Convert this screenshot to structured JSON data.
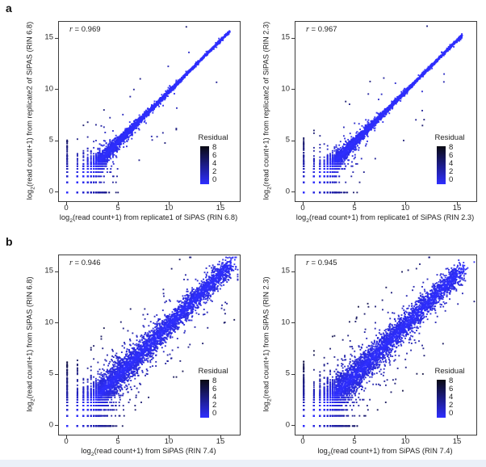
{
  "figure": {
    "panel_a_label": "a",
    "panel_b_label": "b"
  },
  "legend_colormap": {
    "low_color": "#2e2eff",
    "high_color": "#0a0a12",
    "min": 0,
    "max": 8
  },
  "chart_data": [
    {
      "type": "scatter",
      "panel_label": "a",
      "r_symbol": "r",
      "r_rest": " = 0.969",
      "x_label": {
        "prefix": "log",
        "sub": "2",
        "rest": "(read count+1) from replicate1 of SiPAS (RIN 6.8)"
      },
      "y_label": {
        "prefix": "log",
        "sub": "2",
        "rest": "(read count+1) from replicate2 of SiPAS (RIN 6.8)"
      },
      "x_ticks": [
        "0",
        "5",
        "10",
        "15"
      ],
      "y_ticks": [
        "0",
        "5",
        "10",
        "15"
      ],
      "x_tick_values": [
        0,
        5,
        10,
        15
      ],
      "y_tick_values": [
        0,
        5,
        10,
        15
      ],
      "xlim": [
        -0.8,
        16.8
      ],
      "ylim": [
        -0.85,
        16.75
      ],
      "legend": {
        "title": "Residual",
        "tick_labels": [
          "8",
          "6",
          "4",
          "2",
          "0"
        ],
        "low_color": "#2e2eff",
        "high_color": "#0a0a12"
      },
      "distribution": {
        "seed": 7,
        "n": 5200,
        "v_power": 2.1,
        "v_max": 15.8,
        "noise_floor": 0.05,
        "noise_base": 1.6,
        "noise_decay": 2.8,
        "heavy_frac": 0.12,
        "heavy_mult": 2.4,
        "outliers": 28,
        "outlier_min": 1.5,
        "outlier_max": 5.0,
        "zero_col_n": 60,
        "zero_col_max": 5.2,
        "zero_row_n": 95,
        "zero_row_max": 4.1,
        "snap_below": 5.0
      }
    },
    {
      "type": "scatter",
      "panel_label": "",
      "r_symbol": "r",
      "r_rest": " = 0.967",
      "x_label": {
        "prefix": "log",
        "sub": "2",
        "rest": "(read count+1) from replicate1 of SiPAS (RIN 2.3)"
      },
      "y_label": {
        "prefix": "log",
        "sub": "2",
        "rest": "(read count+1) from replicate2 of SiPAS (RIN 2.3)"
      },
      "x_ticks": [
        "0",
        "5",
        "10",
        "15"
      ],
      "y_ticks": [
        "0",
        "5",
        "10",
        "15"
      ],
      "x_tick_values": [
        0,
        5,
        10,
        15
      ],
      "y_tick_values": [
        0,
        5,
        10,
        15
      ],
      "xlim": [
        -0.8,
        16.8
      ],
      "ylim": [
        -0.85,
        16.75
      ],
      "legend": {
        "title": "Residual",
        "tick_labels": [
          "8",
          "6",
          "4",
          "2",
          "0"
        ],
        "low_color": "#2e2eff",
        "high_color": "#0a0a12"
      },
      "distribution": {
        "seed": 13,
        "n": 5200,
        "v_power": 2.1,
        "v_max": 15.4,
        "noise_floor": 0.05,
        "noise_base": 1.6,
        "noise_decay": 2.8,
        "heavy_frac": 0.12,
        "heavy_mult": 2.4,
        "outliers": 26,
        "outlier_min": 1.5,
        "outlier_max": 5.0,
        "zero_col_n": 60,
        "zero_col_max": 5.1,
        "zero_row_n": 90,
        "zero_row_max": 3.6,
        "snap_below": 5.0
      }
    },
    {
      "type": "scatter",
      "panel_label": "b",
      "r_symbol": "r",
      "r_rest": " = 0.946",
      "x_label": {
        "prefix": "log",
        "sub": "2",
        "rest": "(read count+1) from SiPAS (RIN 7.4)"
      },
      "y_label": {
        "prefix": "log",
        "sub": "2",
        "rest": "(read count+1) from SiPAS (RIN 6.8)"
      },
      "x_ticks": [
        "0",
        "5",
        "10",
        "15"
      ],
      "y_ticks": [
        "0",
        "5",
        "10",
        "15"
      ],
      "x_tick_values": [
        0,
        5,
        10,
        15
      ],
      "y_tick_values": [
        0,
        5,
        10,
        15
      ],
      "xlim": [
        -0.8,
        16.8
      ],
      "ylim": [
        -0.85,
        16.75
      ],
      "legend": {
        "title": "Residual",
        "tick_labels": [
          "8",
          "6",
          "4",
          "2",
          "0"
        ],
        "low_color": "#2e2eff",
        "high_color": "#0a0a12"
      },
      "distribution": {
        "seed": 23,
        "n": 6200,
        "v_power": 2.0,
        "v_max": 15.9,
        "noise_floor": 0.6,
        "noise_base": 1.2,
        "noise_decay": 3.5,
        "heavy_frac": 0.15,
        "heavy_mult": 2.0,
        "outliers": 90,
        "outlier_min": 2.0,
        "outlier_max": 6.0,
        "zero_col_n": 70,
        "zero_col_max": 6.3,
        "zero_row_n": 110,
        "zero_row_max": 4.3,
        "snap_below": 5.0
      }
    },
    {
      "type": "scatter",
      "panel_label": "",
      "r_symbol": "r",
      "r_rest": " = 0.945",
      "x_label": {
        "prefix": "log",
        "sub": "2",
        "rest": "(read count+1) from SiPAS (RIN 7.4)"
      },
      "y_label": {
        "prefix": "log",
        "sub": "2",
        "rest": "(read count+1) from SiPAS (RIN 2.3)"
      },
      "x_ticks": [
        "0",
        "5",
        "10",
        "15"
      ],
      "y_ticks": [
        "0",
        "5",
        "10",
        "15"
      ],
      "x_tick_values": [
        0,
        5,
        10,
        15
      ],
      "y_tick_values": [
        0,
        5,
        10,
        15
      ],
      "xlim": [
        -0.8,
        16.8
      ],
      "ylim": [
        -0.85,
        16.75
      ],
      "legend": {
        "title": "Residual",
        "tick_labels": [
          "8",
          "6",
          "4",
          "2",
          "0"
        ],
        "low_color": "#2e2eff",
        "high_color": "#0a0a12"
      },
      "distribution": {
        "seed": 31,
        "n": 6200,
        "v_power": 2.0,
        "v_max": 15.3,
        "noise_floor": 0.62,
        "noise_base": 1.2,
        "noise_decay": 3.5,
        "heavy_frac": 0.15,
        "heavy_mult": 2.0,
        "outliers": 100,
        "outlier_min": 2.0,
        "outlier_max": 6.5,
        "zero_col_n": 75,
        "zero_col_max": 6.5,
        "zero_row_n": 110,
        "zero_row_max": 4.5,
        "snap_below": 5.0
      }
    }
  ]
}
